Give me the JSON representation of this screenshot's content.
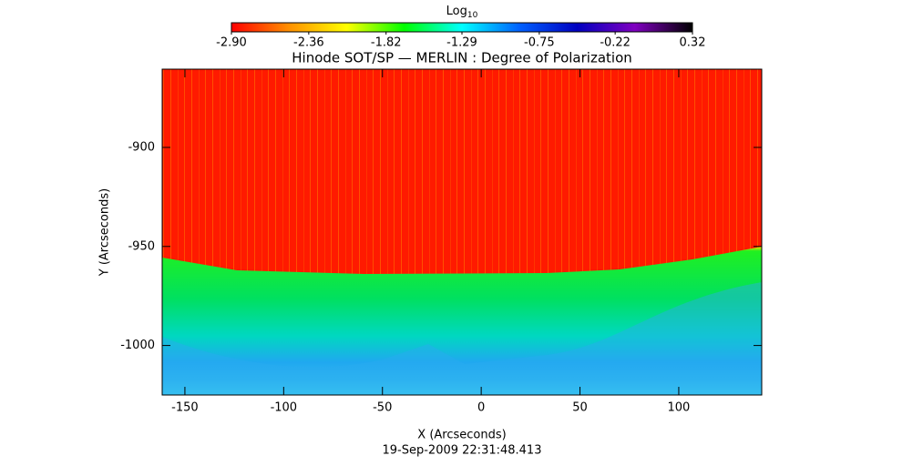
{
  "chart_data": {
    "type": "heatmap",
    "title": "Hinode SOT/SP — MERLIN : Degree of Polarization",
    "x_label": "X (Arcseconds)",
    "y_label": "Y (Arcseconds)",
    "footer": "19-Sep-2009 22:31:48.413",
    "xlim": [
      -161.5,
      142
    ],
    "xticks": [
      -150,
      -100,
      -50,
      0,
      50,
      100
    ],
    "ylim": [
      -1025,
      -860.5
    ],
    "yticks": [
      -900,
      -950,
      -1000
    ],
    "colorbar": {
      "label": "Log",
      "label_sub": "10",
      "lim": [
        -2.9,
        0.32
      ],
      "ticks": [
        {
          "value": -2.9,
          "label": "-2.90"
        },
        {
          "value": -2.36,
          "label": "-2.36"
        },
        {
          "value": -1.82,
          "label": "-1.82"
        },
        {
          "value": -1.29,
          "label": "-1.29"
        },
        {
          "value": -0.75,
          "label": "-0.75"
        },
        {
          "value": -0.22,
          "label": "-0.22"
        },
        {
          "value": 0.32,
          "label": "0.32"
        }
      ],
      "colormap": [
        "#ff0000",
        "#ff9000",
        "#ffff00",
        "#00ff00",
        "#00ffff",
        "#0060ff",
        "#0000c0",
        "#8000c0",
        "#000000"
      ]
    }
  }
}
